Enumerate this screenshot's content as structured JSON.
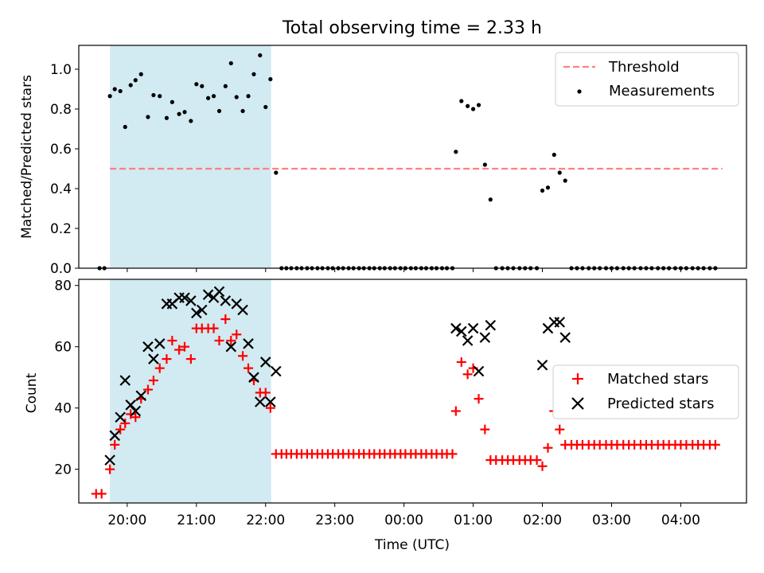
{
  "title": "Total observing time = 2.33 h",
  "colors": {
    "shade": "#add8e6",
    "threshold": "#ff8080",
    "measurement": "#000000",
    "matched": "#ff0000",
    "predicted": "#000000"
  },
  "chart_data": [
    {
      "type": "scatter",
      "ylabel": "Matched/Predicted stars",
      "ylim": [
        0,
        1.12
      ],
      "yticks": [
        "0.0",
        "0.2",
        "0.4",
        "0.6",
        "0.8",
        "1.0"
      ],
      "ytick_values": [
        0,
        0.2,
        0.4,
        0.6,
        0.8,
        1.0
      ],
      "xlim": [
        19.3,
        28.95
      ],
      "shaded_span": [
        19.75,
        22.08
      ],
      "threshold": {
        "name": "Threshold",
        "value": 0.5,
        "x_range": [
          19.75,
          28.6
        ]
      },
      "legend": [
        "Threshold",
        "Measurements"
      ],
      "legend_position": "upper right",
      "series": [
        {
          "name": "Measurements",
          "x": [
            19.6,
            19.67,
            19.75,
            19.82,
            19.9,
            19.97,
            20.05,
            20.12,
            20.2,
            20.3,
            20.38,
            20.47,
            20.57,
            20.65,
            20.75,
            20.83,
            20.92,
            21.0,
            21.08,
            21.17,
            21.25,
            21.33,
            21.42,
            21.5,
            21.58,
            21.67,
            21.75,
            21.83,
            21.92,
            22.0,
            22.07,
            22.15,
            22.23,
            22.3,
            22.37,
            22.45,
            22.52,
            22.6,
            22.67,
            22.75,
            22.82,
            22.9,
            22.97,
            23.05,
            23.12,
            23.2,
            23.27,
            23.35,
            23.42,
            23.5,
            23.57,
            23.65,
            23.72,
            23.8,
            23.87,
            23.95,
            24.02,
            24.1,
            24.17,
            24.25,
            24.32,
            24.4,
            24.47,
            24.55,
            24.62,
            24.7,
            24.75,
            24.83,
            24.92,
            25.0,
            25.08,
            25.17,
            25.25,
            25.33,
            25.42,
            25.5,
            25.58,
            25.67,
            25.75,
            25.83,
            25.92,
            26.0,
            26.08,
            26.17,
            26.25,
            26.33,
            26.42,
            26.5,
            26.58,
            26.67,
            26.75,
            26.83,
            26.92,
            27.0,
            27.08,
            27.17,
            27.25,
            27.33,
            27.42,
            27.5,
            27.58,
            27.67,
            27.75,
            27.83,
            27.92,
            28.0,
            28.08,
            28.17,
            28.25,
            28.33,
            28.42,
            28.5
          ],
          "y": [
            0,
            0,
            0.865,
            0.9,
            0.89,
            0.71,
            0.92,
            0.945,
            0.975,
            0.76,
            0.87,
            0.865,
            0.755,
            0.835,
            0.775,
            0.785,
            0.74,
            0.925,
            0.915,
            0.855,
            0.865,
            0.79,
            0.915,
            1.03,
            0.86,
            0.79,
            0.865,
            0.975,
            1.07,
            0.81,
            0.95,
            0.48,
            0,
            0,
            0,
            0,
            0,
            0,
            0,
            0,
            0,
            0,
            0,
            0,
            0,
            0,
            0,
            0,
            0,
            0,
            0,
            0,
            0,
            0,
            0,
            0,
            0,
            0,
            0,
            0,
            0,
            0,
            0,
            0,
            0,
            0,
            0.585,
            0.84,
            0.815,
            0.8,
            0.82,
            0.52,
            0.345,
            0,
            0,
            0,
            0,
            0,
            0,
            0,
            0,
            0.39,
            0.405,
            0.57,
            0.48,
            0.44,
            0,
            0,
            0,
            0,
            0,
            0,
            0,
            0,
            0,
            0,
            0,
            0,
            0,
            0,
            0,
            0,
            0,
            0,
            0,
            0,
            0,
            0,
            0,
            0,
            0,
            0
          ]
        }
      ]
    },
    {
      "type": "scatter",
      "ylabel": "Count",
      "xlabel": "Time (UTC)",
      "ylim": [
        9,
        82
      ],
      "yticks": [
        "20",
        "40",
        "60",
        "80"
      ],
      "ytick_values": [
        20,
        40,
        60,
        80
      ],
      "xlim": [
        19.3,
        28.95
      ],
      "xtick_values": [
        20,
        21,
        22,
        23,
        24,
        25,
        26,
        27,
        28
      ],
      "xticks": [
        "20:00",
        "21:00",
        "22:00",
        "23:00",
        "00:00",
        "01:00",
        "02:00",
        "03:00",
        "04:00"
      ],
      "shaded_span": [
        19.75,
        22.08
      ],
      "legend": [
        "Matched stars",
        "Predicted stars"
      ],
      "legend_position": "center right",
      "series": [
        {
          "name": "Matched stars",
          "x": [
            19.55,
            19.63,
            19.75,
            19.82,
            19.9,
            19.97,
            20.05,
            20.12,
            20.2,
            20.3,
            20.38,
            20.47,
            20.57,
            20.65,
            20.75,
            20.83,
            20.92,
            21.0,
            21.08,
            21.17,
            21.25,
            21.33,
            21.42,
            21.5,
            21.58,
            21.67,
            21.75,
            21.83,
            21.92,
            22.0,
            22.07,
            22.15,
            22.23,
            22.3,
            22.37,
            22.45,
            22.52,
            22.6,
            22.67,
            22.75,
            22.82,
            22.9,
            22.97,
            23.05,
            23.12,
            23.2,
            23.27,
            23.35,
            23.42,
            23.5,
            23.57,
            23.65,
            23.72,
            23.8,
            23.87,
            23.95,
            24.02,
            24.1,
            24.17,
            24.25,
            24.32,
            24.4,
            24.47,
            24.55,
            24.62,
            24.7,
            24.75,
            24.83,
            24.92,
            25.0,
            25.08,
            25.17,
            25.25,
            25.33,
            25.42,
            25.5,
            25.58,
            25.67,
            25.75,
            25.83,
            25.92,
            26.0,
            26.08,
            26.17,
            26.25,
            26.33,
            26.42,
            26.5,
            26.58,
            26.67,
            26.75,
            26.83,
            26.92,
            27.0,
            27.08,
            27.17,
            27.25,
            27.33,
            27.42,
            27.5,
            27.58,
            27.67,
            27.75,
            27.83,
            27.92,
            28.0,
            28.08,
            28.17,
            28.25,
            28.33,
            28.42,
            28.5
          ],
          "y": [
            12,
            12,
            20,
            28,
            33,
            35,
            38,
            37,
            43,
            46,
            49,
            53,
            56,
            62,
            59,
            60,
            56,
            66,
            66,
            66,
            66,
            62,
            69,
            62,
            64,
            57,
            53,
            49,
            45,
            45,
            40,
            25,
            25,
            25,
            25,
            25,
            25,
            25,
            25,
            25,
            25,
            25,
            25,
            25,
            25,
            25,
            25,
            25,
            25,
            25,
            25,
            25,
            25,
            25,
            25,
            25,
            25,
            25,
            25,
            25,
            25,
            25,
            25,
            25,
            25,
            25,
            39,
            55,
            51,
            53,
            43,
            33,
            23,
            23,
            23,
            23,
            23,
            23,
            23,
            23,
            23,
            21,
            27,
            39,
            33,
            28,
            28,
            28,
            28,
            28,
            28,
            28,
            28,
            28,
            28,
            28,
            28,
            28,
            28,
            28,
            28,
            28,
            28,
            28,
            28,
            28,
            28,
            28,
            28,
            28,
            28,
            28
          ]
        },
        {
          "name": "Predicted stars",
          "x": [
            19.75,
            19.82,
            19.9,
            19.97,
            20.05,
            20.12,
            20.2,
            20.3,
            20.38,
            20.47,
            20.57,
            20.65,
            20.75,
            20.83,
            20.92,
            21.0,
            21.08,
            21.17,
            21.25,
            21.33,
            21.42,
            21.5,
            21.58,
            21.67,
            21.75,
            21.83,
            21.92,
            22.0,
            22.07,
            22.15,
            24.75,
            24.83,
            24.92,
            25.0,
            25.08,
            25.17,
            25.25,
            26.0,
            26.08,
            26.17,
            26.25,
            26.33
          ],
          "y": [
            23,
            31,
            37,
            49,
            41,
            39,
            44,
            60,
            56,
            61,
            74,
            74,
            76,
            76,
            75,
            71,
            72,
            77,
            76,
            78,
            75,
            60,
            74,
            72,
            61,
            50,
            42,
            55,
            42,
            52,
            66,
            65,
            62,
            66,
            52,
            63,
            67,
            54,
            66,
            68,
            68,
            63
          ]
        }
      ]
    }
  ]
}
